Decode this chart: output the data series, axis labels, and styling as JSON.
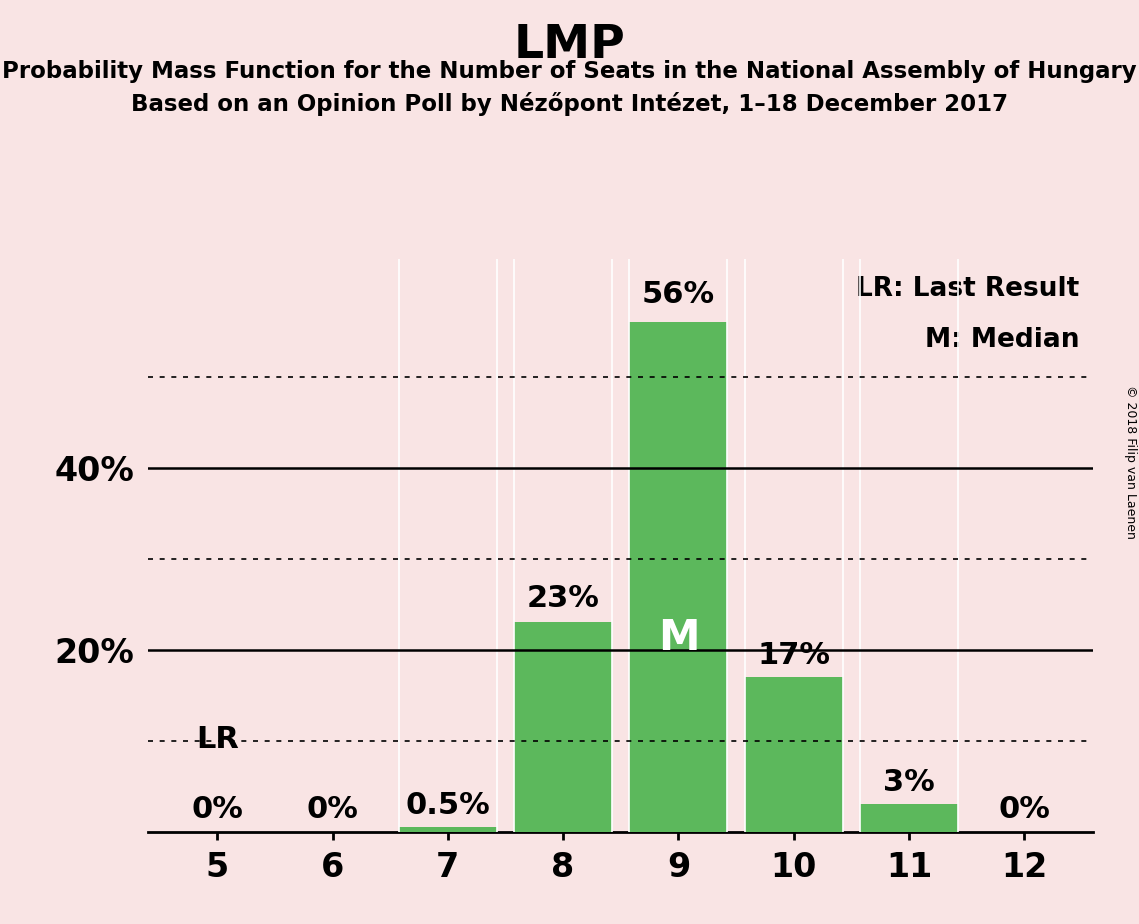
{
  "title": "LMP",
  "subtitle1": "Probability Mass Function for the Number of Seats in the National Assembly of Hungary",
  "subtitle2": "Based on an Opinion Poll by Nézőpont Intézet, 1–18 December 2017",
  "categories": [
    5,
    6,
    7,
    8,
    9,
    10,
    11,
    12
  ],
  "values": [
    0.0,
    0.0,
    0.5,
    23.0,
    56.0,
    17.0,
    3.0,
    0.0
  ],
  "bar_color": "#5cb85c",
  "background_color": "#f9e4e4",
  "solid_ylines": [
    20,
    40
  ],
  "dotted_ylines": [
    10,
    30,
    50
  ],
  "median_bar_idx": 4,
  "median_label": "M",
  "lr_label": "LR",
  "legend_text1": "LR: Last Result",
  "legend_text2": "M: Median",
  "copyright_text": "© 2018 Filip van Laenen",
  "bar_labels": [
    "0%",
    "0%",
    "0.5%",
    "23%",
    "56%",
    "17%",
    "3%",
    "0%"
  ],
  "ylim": [
    0,
    63
  ],
  "xlim": [
    4.4,
    12.6
  ]
}
